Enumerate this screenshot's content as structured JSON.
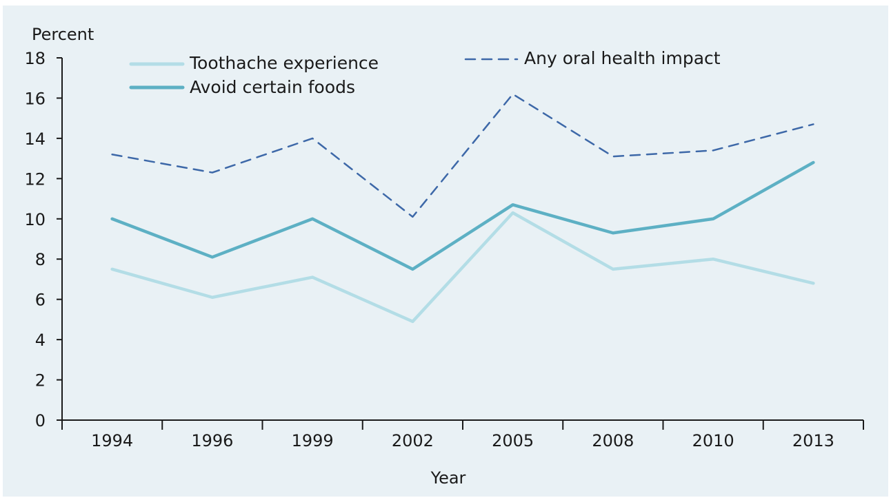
{
  "chart_data": {
    "type": "line",
    "ylabel": "Percent",
    "xlabel": "Year",
    "categories": [
      "1994",
      "1996",
      "1999",
      "2002",
      "2005",
      "2008",
      "2010",
      "2013"
    ],
    "ylim": [
      0,
      18
    ],
    "yticks": [
      0,
      2,
      4,
      6,
      8,
      10,
      12,
      14,
      16,
      18
    ],
    "grid": false,
    "legend_placement": "top",
    "series": [
      {
        "name": "Toothache experience",
        "values": [
          7.5,
          6.1,
          7.1,
          4.9,
          10.3,
          7.5,
          8.0,
          6.8
        ],
        "color": "#b3dde6",
        "style": "solid"
      },
      {
        "name": "Avoid certain foods",
        "values": [
          10.0,
          8.1,
          10.0,
          7.5,
          10.7,
          9.3,
          10.0,
          12.8
        ],
        "color": "#5db0c4",
        "style": "solid"
      },
      {
        "name": "Any oral health impact",
        "values": [
          13.2,
          12.3,
          14.0,
          10.1,
          16.2,
          13.1,
          13.4,
          14.7
        ],
        "color": "#3d68a8",
        "style": "dashed"
      }
    ]
  }
}
